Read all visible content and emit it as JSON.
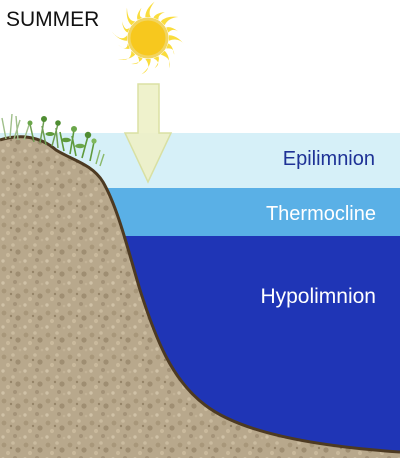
{
  "season_label": "SUMMER",
  "layers": [
    {
      "name": "Epilimnion",
      "color": "#d6f0f8"
    },
    {
      "name": "Thermocline",
      "color": "#5ab0e6"
    },
    {
      "name": "Hypolimnion",
      "color": "#1f35b6"
    }
  ],
  "colors": {
    "sun_core": "#f7c81e",
    "sun_rays": "#fadd3c",
    "arrow_fill": "#eef1c8",
    "arrow_stroke": "#d9df9c",
    "soil": "#b8a88c",
    "shoreline": "#4d3a22",
    "grass": "#5e9a3c",
    "label_dark": "#1e3296",
    "label_light": "#ffffff",
    "season_text": "#111111"
  },
  "icons": {
    "sun": "sun-icon",
    "arrow": "down-arrow-icon",
    "vegetation": "plant-icon"
  }
}
